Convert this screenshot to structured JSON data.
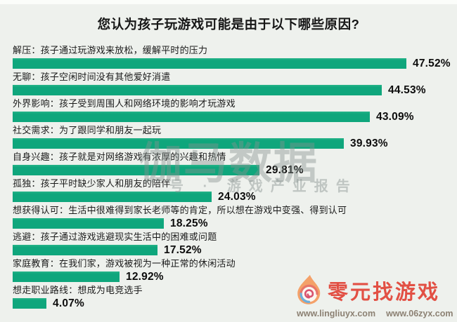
{
  "title": "您认为孩子玩游戏可能是由于以下哪些原因?",
  "chart_data": {
    "type": "bar",
    "orientation": "horizontal",
    "title": "您认为孩子玩游戏可能是由于以下哪些原因?",
    "value_unit": "%",
    "xlim": [
      0,
      50
    ],
    "grid": false,
    "legend": "none",
    "bar_color": "#0fa67c",
    "categories": [
      "解压：孩子通过玩游戏来放松，缓解平时的压力",
      "无聊：孩子空闲时间没有其他爱好消遣",
      "外界影响：孩子受到周围人和网络环境的影响才玩游戏",
      "社交需求：为了跟同学和朋友一起玩",
      "自身兴趣：孩子就是对网络游戏有浓厚的兴趣和热情",
      "孤独：孩子平时缺少家人和朋友的陪伴",
      "想获得认可：生活中很难得到家长老师等的肯定，所以想在游戏中变强、得到认可",
      "逃避：孩子通过游戏逃避现实生活中的困难或问题",
      "家庭教育：在我们家，游戏被视为一种正常的休闲活动",
      "想走职业路线：想成为电竞选手"
    ],
    "values": [
      47.52,
      44.53,
      43.09,
      39.93,
      29.81,
      24.03,
      18.25,
      17.52,
      12.92,
      4.07
    ],
    "display_values": [
      "47.52%",
      "44.53%",
      "43.09%",
      "39.93%",
      "29.81%",
      "24.03%",
      "18.25%",
      "17.52%",
      "12.92%",
      "4.07%"
    ]
  },
  "watermark": {
    "primary": "伽马数据",
    "secondary": "号 · 游戏产业报告"
  },
  "footer_logo": {
    "icon": "flame-swirl-icon",
    "brand": "零元找游戏",
    "brand_color": "#e25044",
    "urls": [
      "www.lingliuyx.com",
      "www.06zyx.com"
    ]
  }
}
